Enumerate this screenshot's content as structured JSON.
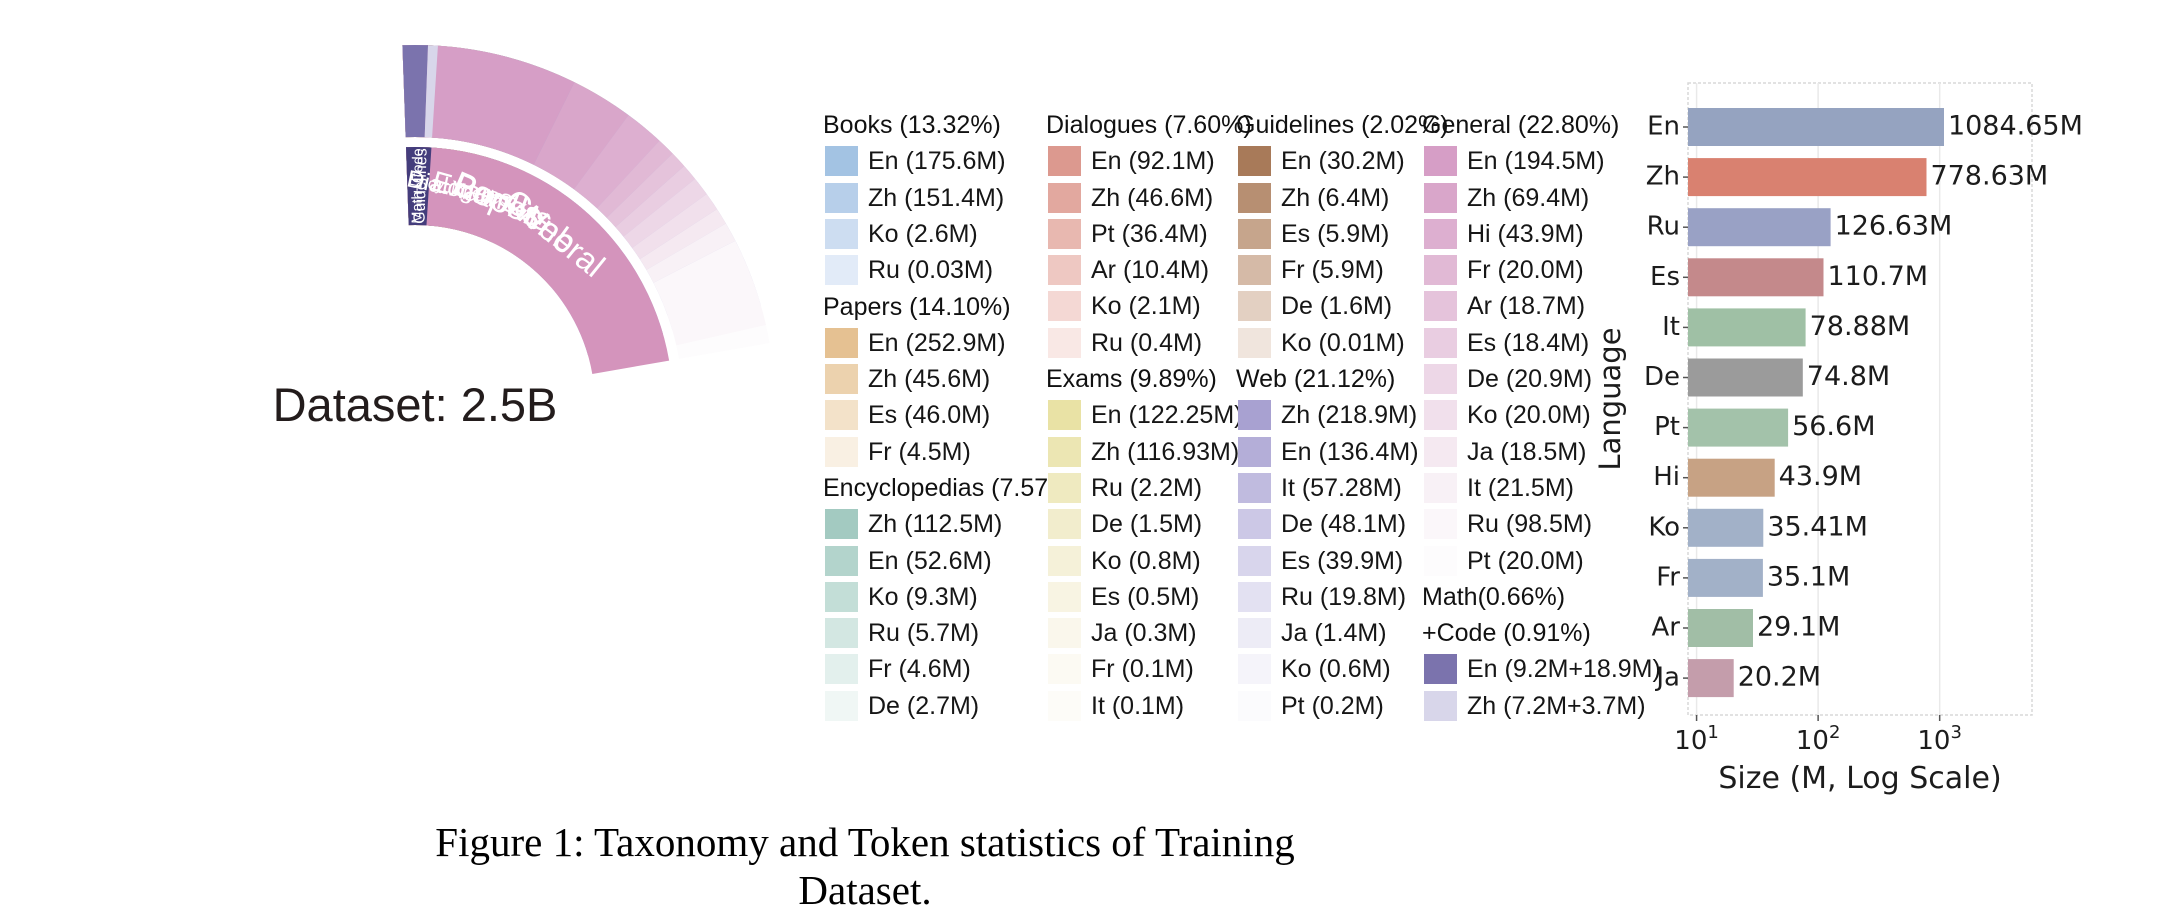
{
  "figure": {
    "caption": "Figure 1: Taxonomy and Token statistics of Training Dataset.",
    "center_label": "Dataset: 2.5B"
  },
  "chart_data": [
    {
      "type": "pie",
      "subtype": "sunburst",
      "title": "Dataset: 2.5B",
      "start_angle_deg": -2,
      "categories": [
        {
          "id": "books",
          "arc_label": "Books",
          "legend_header_lines": [
            "Books (13.32%)"
          ],
          "pct": 13.32,
          "inner_color": "#7aa5d8",
          "languages": [
            {
              "label": "En (175.6M)",
              "value": 175.6,
              "color": "#a3c3e3"
            },
            {
              "label": "Zh (151.4M)",
              "value": 151.4,
              "color": "#b7cfea"
            },
            {
              "label": "Ko (2.6M)",
              "value": 2.6,
              "color": "#cdddf1"
            },
            {
              "label": "Ru (0.03M)",
              "value": 0.03,
              "color": "#e2ebf8"
            }
          ]
        },
        {
          "id": "papers",
          "arc_label": "Papers",
          "legend_header_lines": [
            "Papers (14.10%)"
          ],
          "pct": 14.1,
          "inner_color": "#e2ae72",
          "languages": [
            {
              "label": "En (252.9M)",
              "value": 252.9,
              "color": "#e5c192"
            },
            {
              "label": "Zh (45.6M)",
              "value": 45.6,
              "color": "#ecd2ae"
            },
            {
              "label": "Es (46.0M)",
              "value": 46.0,
              "color": "#f3e2c9"
            },
            {
              "label": "Fr (4.5M)",
              "value": 4.5,
              "color": "#f9f0e3"
            }
          ]
        },
        {
          "id": "encyclopedias",
          "arc_label": "Encyclopedias",
          "legend_header_lines": [
            "Encyclopedias (7.57%)"
          ],
          "pct": 7.57,
          "inner_color": "#72b4a2",
          "languages": [
            {
              "label": "Zh (112.5M)",
              "value": 112.5,
              "color": "#a3cac1"
            },
            {
              "label": "En (52.6M)",
              "value": 52.6,
              "color": "#b3d4cc"
            },
            {
              "label": "Ko (9.3M)",
              "value": 9.3,
              "color": "#c3ded7"
            },
            {
              "label": "Ru (5.7M)",
              "value": 5.7,
              "color": "#d3e7e2"
            },
            {
              "label": "Fr (4.6M)",
              "value": 4.6,
              "color": "#e3f0ed"
            },
            {
              "label": "De (2.7M)",
              "value": 2.7,
              "color": "#f0f7f5"
            }
          ]
        },
        {
          "id": "dialogues",
          "arc_label": "Dialogues",
          "legend_header_lines": [
            "Dialogues (7.60%)"
          ],
          "pct": 7.6,
          "inner_color": "#d96d60",
          "languages": [
            {
              "label": "En (92.1M)",
              "value": 92.1,
              "color": "#dc998f"
            },
            {
              "label": "Zh (46.6M)",
              "value": 46.6,
              "color": "#e2a89f"
            },
            {
              "label": "Pt (36.4M)",
              "value": 36.4,
              "color": "#e8b8b0"
            },
            {
              "label": "Ar (10.4M)",
              "value": 10.4,
              "color": "#eec8c2"
            },
            {
              "label": "Ko (2.1M)",
              "value": 2.1,
              "color": "#f4d8d4"
            },
            {
              "label": "Ru (0.4M)",
              "value": 0.4,
              "color": "#f9e8e5"
            }
          ]
        },
        {
          "id": "exams",
          "arc_label": "Exams",
          "legend_header_lines": [
            "Exams (9.89%)"
          ],
          "pct": 9.89,
          "inner_color": "#eae193",
          "languages": [
            {
              "label": "En (122.25M)",
              "value": 122.25,
              "color": "#e9e2a5"
            },
            {
              "label": "Zh (116.93M)",
              "value": 116.93,
              "color": "#ece6b3"
            },
            {
              "label": "Ru (2.2M)",
              "value": 2.2,
              "color": "#efeac0"
            },
            {
              "label": "De (1.5M)",
              "value": 1.5,
              "color": "#f2edcd"
            },
            {
              "label": "Ko (0.8M)",
              "value": 0.8,
              "color": "#f5f1d9"
            },
            {
              "label": "Es (0.5M)",
              "value": 0.5,
              "color": "#f8f4e3"
            },
            {
              "label": "Ja (0.3M)",
              "value": 0.3,
              "color": "#faf7ec"
            },
            {
              "label": "Fr (0.1M)",
              "value": 0.1,
              "color": "#fcfaf3"
            },
            {
              "label": "It (0.1M)",
              "value": 0.1,
              "color": "#fdfcf8"
            }
          ]
        },
        {
          "id": "guidelines",
          "arc_label": "Guidelines",
          "legend_header_lines": [
            "Guidelines (2.02%)"
          ],
          "pct": 2.02,
          "inner_color": "#8a5738",
          "languages": [
            {
              "label": "En (30.2M)",
              "value": 30.2,
              "color": "#a87a59"
            },
            {
              "label": "Zh (6.4M)",
              "value": 6.4,
              "color": "#b78f72"
            },
            {
              "label": "Es (5.9M)",
              "value": 5.9,
              "color": "#c6a58c"
            },
            {
              "label": "Fr (5.9M)",
              "value": 5.9,
              "color": "#d5baa7"
            },
            {
              "label": "De (1.6M)",
              "value": 1.6,
              "color": "#e3d0c2"
            },
            {
              "label": "Ko (0.01M)",
              "value": 0.01,
              "color": "#f0e5dd"
            }
          ]
        },
        {
          "id": "web",
          "arc_label": "Web",
          "legend_header_lines": [
            "Web (21.12%)"
          ],
          "pct": 21.12,
          "inner_color": "#a9a1d3",
          "languages": [
            {
              "label": "Zh (218.9M)",
              "value": 218.9,
              "color": "#a8a1d1"
            },
            {
              "label": "En (136.4M)",
              "value": 136.4,
              "color": "#b4aed8"
            },
            {
              "label": "It (57.28M)",
              "value": 57.28,
              "color": "#c0bbdf"
            },
            {
              "label": "De (48.1M)",
              "value": 48.1,
              "color": "#ccc8e6"
            },
            {
              "label": "Es (39.9M)",
              "value": 39.9,
              "color": "#d8d5ec"
            },
            {
              "label": "Ru (19.8M)",
              "value": 19.8,
              "color": "#e3e1f2"
            },
            {
              "label": "Ja (1.4M)",
              "value": 1.4,
              "color": "#edecf6"
            },
            {
              "label": "Ko (0.6M)",
              "value": 0.6,
              "color": "#f5f4fa"
            },
            {
              "label": "Pt (0.2M)",
              "value": 0.2,
              "color": "#fbfbfd"
            }
          ]
        },
        {
          "id": "general",
          "arc_label": "General",
          "legend_header_lines": [
            "General (22.80%)"
          ],
          "pct": 22.8,
          "inner_color": "#d494bc",
          "languages": [
            {
              "label": "En (194.5M)",
              "value": 194.5,
              "color": "#d69ec6"
            },
            {
              "label": "Zh (69.4M)",
              "value": 69.4,
              "color": "#d9a6ca"
            },
            {
              "label": "Hi (43.9M)",
              "value": 43.9,
              "color": "#ddafd0"
            },
            {
              "label": "Fr (20.0M)",
              "value": 20.0,
              "color": "#e1b9d5"
            },
            {
              "label": "Ar (18.7M)",
              "value": 18.7,
              "color": "#e5c3db"
            },
            {
              "label": "Es (18.4M)",
              "value": 18.4,
              "color": "#e9cde1"
            },
            {
              "label": "De (20.9M)",
              "value": 20.9,
              "color": "#edd7e7"
            },
            {
              "label": "Ko (20.0M)",
              "value": 20.0,
              "color": "#f1e0ec"
            },
            {
              "label": "Ja (18.5M)",
              "value": 18.5,
              "color": "#f5e9f1"
            },
            {
              "label": "It (21.5M)",
              "value": 21.5,
              "color": "#f8f1f6"
            },
            {
              "label": "Ru (98.5M)",
              "value": 98.5,
              "color": "#fbf7fa"
            },
            {
              "label": "Pt (20.0M)",
              "value": 20.0,
              "color": "#fdfcfd"
            }
          ]
        },
        {
          "id": "mathcode",
          "arc_label": "Math+Code",
          "legend_header_lines": [
            "Math(0.66%)",
            "+Code (0.91%)"
          ],
          "pct": 1.57,
          "inner_color": "#443d7c",
          "languages": [
            {
              "label": "En (9.2M+18.9M)",
              "value": 28.1,
              "color": "#7b73ad"
            },
            {
              "label": "Zh (7.2M+3.7M)",
              "value": 10.9,
              "color": "#d8d6ea"
            }
          ]
        }
      ]
    },
    {
      "type": "bar",
      "orientation": "horizontal",
      "xlabel": "Size (M, Log Scale)",
      "ylabel": "Language",
      "xscale": "log",
      "xlim": [
        8.5,
        5750
      ],
      "xticks": [
        {
          "base": "10",
          "exp": "1",
          "value": 10
        },
        {
          "base": "10",
          "exp": "2",
          "value": 100
        },
        {
          "base": "10",
          "exp": "3",
          "value": 1000
        }
      ],
      "categories": [
        "En",
        "Zh",
        "Ru",
        "Es",
        "It",
        "De",
        "Pt",
        "Hi",
        "Ko",
        "Fr",
        "Ar",
        "Ja"
      ],
      "values": [
        1084.65,
        778.63,
        126.63,
        110.7,
        78.88,
        74.8,
        56.6,
        43.9,
        35.41,
        35.1,
        29.1,
        20.2
      ],
      "value_labels": [
        "1084.65M",
        "778.63M",
        "126.63M",
        "110.7M",
        "78.88M",
        "74.8M",
        "56.6M",
        "43.9M",
        "35.41M",
        "35.1M",
        "29.1M",
        "20.2M"
      ],
      "colors": [
        "#95a3c0",
        "#d98170",
        "#99a1c5",
        "#c4898b",
        "#9fc0a5",
        "#9b9b9b",
        "#a3c2aa",
        "#c7a284",
        "#a2b1c8",
        "#a2b1c8",
        "#a1bea6",
        "#c49dab"
      ]
    }
  ],
  "legend": {
    "columns": [
      [
        "books",
        "papers",
        "encyclopedias"
      ],
      [
        "dialogues",
        "exams"
      ],
      [
        "guidelines",
        "web"
      ],
      [
        "general",
        "mathcode"
      ]
    ]
  }
}
